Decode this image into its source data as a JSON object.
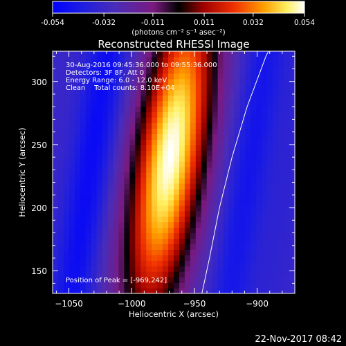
{
  "colorbar": {
    "ticks": [
      "-0.054",
      "-0.032",
      "-0.011",
      "0.011",
      "0.032",
      "0.054"
    ],
    "tick_values": [
      -0.054,
      -0.032,
      -0.011,
      0.011,
      0.032,
      0.054
    ],
    "unit_label": "(photons cm⁻² s⁻¹ asec⁻²)",
    "range": [
      -0.054,
      0.054
    ]
  },
  "chart_data": {
    "type": "heatmap",
    "title": "Reconstructed RHESSI Image",
    "xlabel": "Heliocentric X (arcsec)",
    "ylabel": "Heliocentric Y (arcsec)",
    "xlim": [
      -1063,
      -870
    ],
    "ylim": [
      132,
      324
    ],
    "x_ticks": [
      -1050,
      -1000,
      -950,
      -900
    ],
    "x_tick_labels": [
      "−1050",
      "−1000",
      "−950",
      "−900"
    ],
    "y_ticks": [
      150,
      200,
      250,
      300
    ],
    "y_tick_labels": [
      "150",
      "200",
      "250",
      "300"
    ],
    "annotations": [
      "30-Aug-2016 09:45:36.000 to 09:55:36.000",
      "Detectors: 3F 8F, Att 0",
      "Energy Range: 6.0 - 12.0 keV",
      "Clean    Total counts: 8.10E+04"
    ],
    "peak_label": "Position of Peak = [-969,242]",
    "peak": [
      -969,
      242
    ],
    "limb_curve": [
      [
        -944,
        132
      ],
      [
        -938,
        160
      ],
      [
        -930,
        200
      ],
      [
        -920,
        240
      ],
      [
        -908,
        280
      ],
      [
        -893,
        320
      ],
      [
        -891,
        324
      ]
    ],
    "source": {
      "peak_value": 0.054,
      "center_x": -969,
      "center_y": 242,
      "ridge_tilt_per_arcsec_y": 0.15,
      "sigma_x": 20,
      "sigma_y": 95,
      "side_lobes": [
        {
          "x_offset": -62,
          "value": -0.05,
          "sigma_x": 11
        },
        {
          "x_offset": 64,
          "value": -0.045,
          "sigma_x": 11
        },
        {
          "x_offset": 95,
          "value": -0.035,
          "sigma_x": 12
        }
      ],
      "background_value": -0.032
    }
  },
  "footer": {
    "date": "22-Nov-2017 08:42"
  }
}
